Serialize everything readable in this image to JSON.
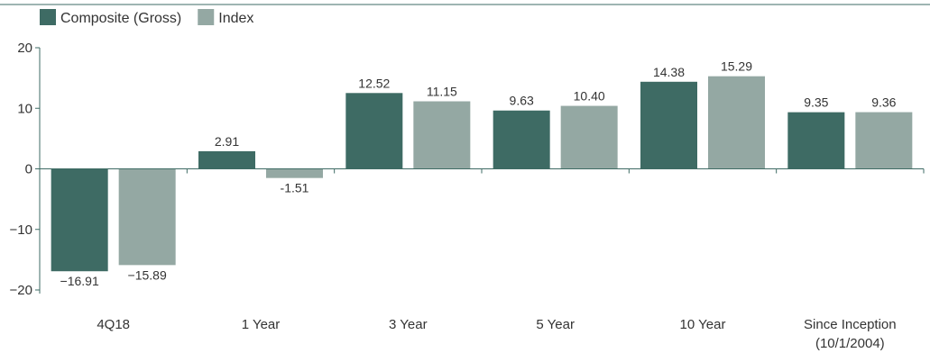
{
  "chart_data": {
    "type": "bar",
    "categories": [
      "4Q18",
      "1 Year",
      "3 Year",
      "5 Year",
      "10 Year",
      "Since Inception\n(10/1/2004)"
    ],
    "series": [
      {
        "name": "Composite (Gross)",
        "color": "#3e6b64",
        "values": [
          -16.91,
          2.91,
          12.52,
          9.63,
          14.38,
          9.35
        ]
      },
      {
        "name": "Index",
        "color": "#94a8a3",
        "values": [
          -15.89,
          -1.51,
          11.15,
          10.4,
          15.29,
          9.36
        ]
      }
    ],
    "value_labels": [
      [
        "−16.91",
        "2.91",
        "12.52",
        "9.63",
        "14.38",
        "9.35"
      ],
      [
        "−15.89",
        "-1.51",
        "11.15",
        "10.40",
        "15.29",
        "9.36"
      ]
    ],
    "y_ticks": [
      20,
      10,
      0,
      -10,
      -20
    ],
    "y_tick_labels": [
      "20",
      "10",
      "0",
      "−10",
      "−20"
    ],
    "ylim": [
      -20,
      20
    ],
    "legend": "top-left",
    "grid": false
  }
}
